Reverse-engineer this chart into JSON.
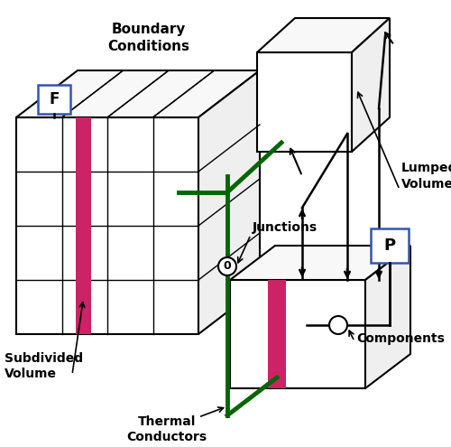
{
  "bg_color": "#ffffff",
  "black": "#000000",
  "green": "#006600",
  "pink": "#cc2266",
  "blue": "#3355aa",
  "labels": {
    "boundary_conditions": "Boundary\nConditions",
    "subdivided_volume": "Subdivided\nVolume",
    "thermal_conductors": "Thermal\nConductors",
    "junctions": "Junctions",
    "lumped_volumes": "Lumped\nVolumes",
    "components": "Components",
    "F": "F",
    "P": "P"
  }
}
